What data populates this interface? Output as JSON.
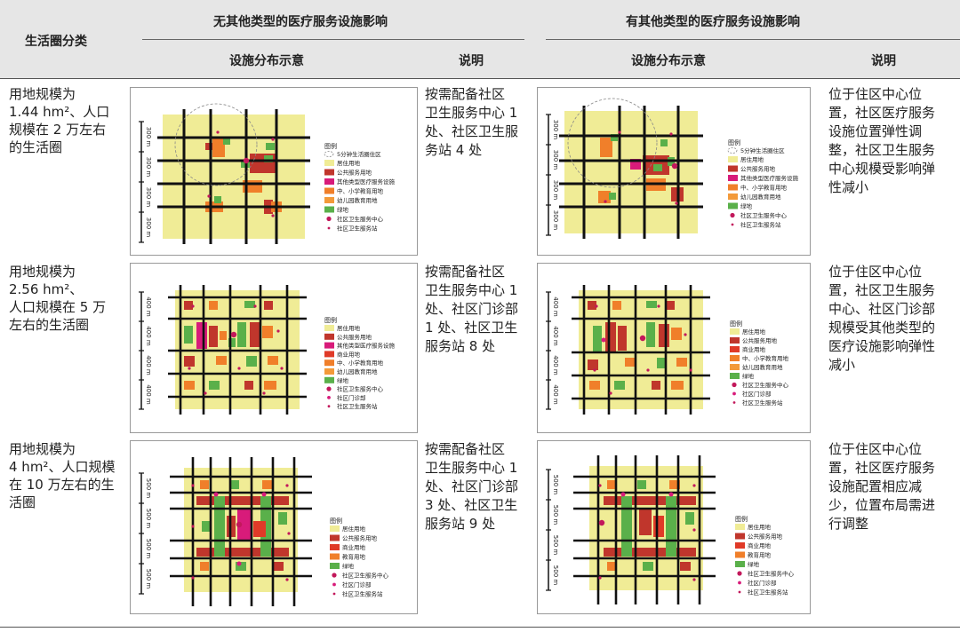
{
  "header": {
    "category": "生活圈分类",
    "group_left": "无其他类型的医疗服务设施影响",
    "group_right": "有其他类型的医疗服务设施影响",
    "col_diagram": "设施分布示意",
    "col_note": "说明"
  },
  "rows": [
    {
      "category": "用地规模为\n1.44 hm²、人口\n规模在 2 万左右\n的生活圈",
      "note_left": "按需配备社区\n卫生服务中心 1\n处、社区卫生服\n务站 4 处",
      "note_right": "位于住区中心位\n置，社区医疗服务\n设施位置弹性调\n整，社区卫生服务\n中心规模受影响弹\n性减小",
      "scale_label": "300 m",
      "circle_label": "5分钟生活圈住区",
      "legend_title": "图例",
      "legend_left": [
        "居住用地",
        "公共服务用地",
        "其他类型医疗服务设施",
        "中、小学教育用地",
        "幼儿园教育用地",
        "绿地",
        "社区卫生服务中心",
        "社区卫生服务站"
      ],
      "legend_right": [
        "居住用地",
        "公共服务用地",
        "其他类型医疗服务设施",
        "中、小学教育用地",
        "幼儿园教育用地",
        "绿地",
        "社区卫生服务中心",
        "社区卫生服务站"
      ]
    },
    {
      "category": "用地规模为\n2.56 hm²、\n人口规模在 5 万\n左右的生活圈",
      "note_left": "按需配备社区\n卫生服务中心 1\n处、社区门诊部\n1 处、社区卫生\n服务站 8 处",
      "note_right": "位于住区中心位\n置，社区卫生服务\n中心、社区门诊部\n规模受其他类型的\n医疗设施影响弹性\n减小",
      "scale_label": "400 m",
      "legend_title": "图例",
      "legend_left": [
        "居住用地",
        "公共服务用地",
        "其他类型医疗服务设施",
        "商业用地",
        "中、小学教育用地",
        "幼儿园教育用地",
        "绿地",
        "社区卫生服务中心",
        "社区门诊部",
        "社区卫生服务站"
      ],
      "legend_right": [
        "居住用地",
        "公共服务用地",
        "商业用地",
        "中、小学教育用地",
        "幼儿园教育用地",
        "绿地",
        "社区卫生服务中心",
        "社区门诊部",
        "社区卫生服务站"
      ]
    },
    {
      "category": "用地规模为\n4 hm²、人口规模\n在 10 万左右的生\n活圈",
      "note_left": "按需配备社区\n卫生服务中心 1\n处、社区门诊部\n3 处、社区卫生\n服务站 9 处",
      "note_right": "位于住区中心位\n置，社区医疗服务\n设施配置相应减\n少，位置布局需进\n行调整",
      "scale_label": "500 m",
      "legend_title": "图例",
      "legend_left": [
        "居住用地",
        "公共服务用地",
        "商业用地",
        "教育用地",
        "绿地",
        "社区卫生服务中心",
        "社区门诊部",
        "社区卫生服务站"
      ],
      "legend_right": [
        "居住用地",
        "公共服务用地",
        "商业用地",
        "教育用地",
        "绿地",
        "社区卫生服务中心",
        "社区门诊部",
        "社区卫生服务站"
      ]
    }
  ],
  "colors": {
    "residential": "#f0ec96",
    "public_service": "#c0362c",
    "other_medical": "#d81b7a",
    "commercial": "#e03a28",
    "education": "#f07f2a",
    "kindergarten": "#f39a3a",
    "green": "#5ab04a",
    "health_center": "#c2185b",
    "clinic": "#d81b7a",
    "health_station": "#c2185b",
    "road": "#111111"
  }
}
